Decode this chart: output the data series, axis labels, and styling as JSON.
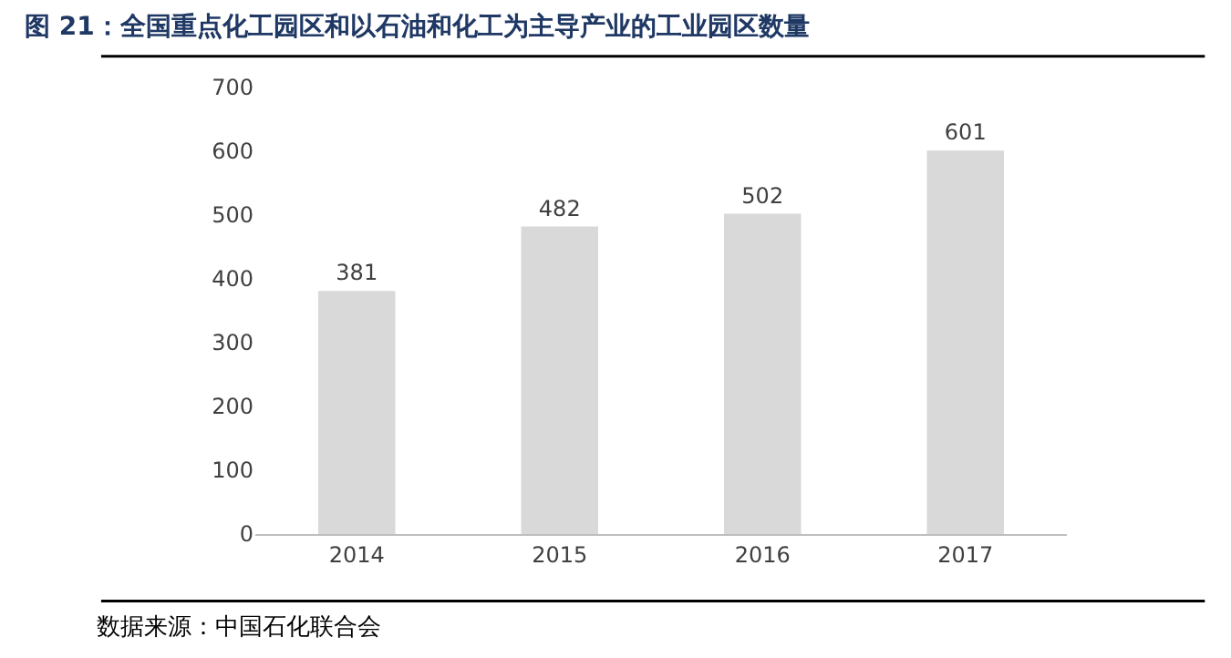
{
  "chart_data": {
    "type": "bar",
    "title": "图 21：全国重点化工园区和以石油和化工为主导产业的工业园区数量",
    "categories": [
      "2014",
      "2015",
      "2016",
      "2017"
    ],
    "values": [
      381,
      482,
      502,
      601
    ],
    "color": "#d9d9d9",
    "ylim": [
      0,
      700
    ],
    "yticks": [
      0,
      100,
      200,
      300,
      400,
      500,
      600,
      700
    ],
    "data_labels": true,
    "grid": false,
    "annotations": [
      "数据来源：中国石化联合会"
    ]
  }
}
